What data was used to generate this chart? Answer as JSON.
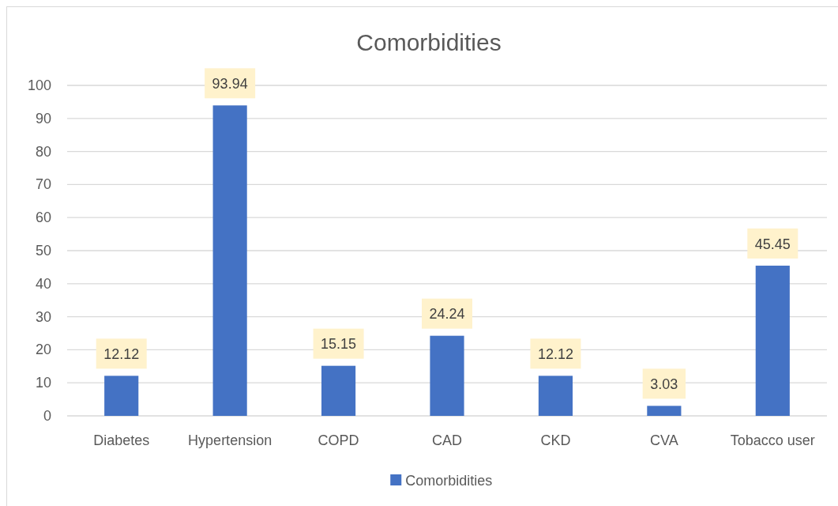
{
  "chart_data": {
    "type": "bar",
    "title": "Comorbidities",
    "categories": [
      "Diabetes",
      "Hypertension",
      "COPD",
      "CAD",
      "CKD",
      "CVA",
      "Tobacco user"
    ],
    "series": [
      {
        "name": "Comorbidities",
        "color": "#4472c4",
        "values": [
          12.12,
          93.94,
          15.15,
          24.24,
          12.12,
          3.03,
          45.45
        ]
      }
    ],
    "ylim": [
      0,
      100
    ],
    "yticks": [
      0,
      10,
      20,
      30,
      40,
      50,
      60,
      70,
      80,
      90,
      100
    ],
    "grid": "y",
    "legend": "bottom",
    "data_labels": true
  }
}
